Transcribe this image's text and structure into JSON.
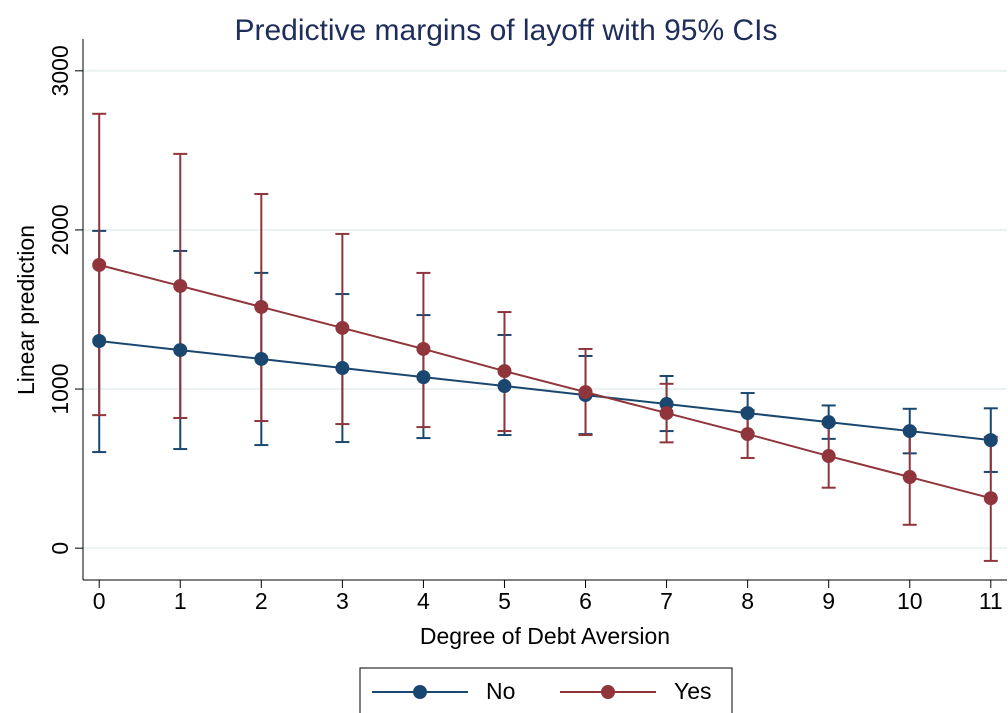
{
  "chart_data": {
    "type": "line",
    "title": "Predictive margins of layoff with 95% CIs",
    "x_label": "Degree of Debt Aversion",
    "y_label": "Linear prediction",
    "x": [
      0,
      1,
      2,
      3,
      4,
      5,
      6,
      7,
      8,
      9,
      10,
      11
    ],
    "series": [
      {
        "name": "No",
        "color": "#1a476f",
        "values": [
          1302,
          1245,
          1189,
          1132,
          1075,
          1019,
          962,
          906,
          849,
          792,
          736,
          679
        ],
        "lower": [
          604,
          623,
          648,
          667,
          692,
          711,
          717,
          736,
          723,
          687,
          596,
          479
        ],
        "upper": [
          1994,
          1868,
          1730,
          1597,
          1465,
          1340,
          1208,
          1082,
          975,
          897,
          876,
          879
        ]
      },
      {
        "name": "Yes",
        "color": "#90353b",
        "values": [
          1780,
          1648,
          1516,
          1384,
          1252,
          1113,
          981,
          849,
          717,
          579,
          447,
          314
        ],
        "lower": [
          836,
          818,
          799,
          780,
          761,
          736,
          711,
          665,
          567,
          380,
          147,
          -80
        ],
        "upper": [
          2730,
          2478,
          2226,
          1975,
          1730,
          1484,
          1252,
          1033,
          867,
          780,
          747,
          700
        ]
      }
    ],
    "xlim": [
      -0.2,
      11.2
    ],
    "ylim": [
      -200,
      3200
    ],
    "xticks": [
      0,
      1,
      2,
      3,
      4,
      5,
      6,
      7,
      8,
      9,
      10,
      11
    ],
    "yticks": [
      0,
      1000,
      2000,
      3000
    ],
    "grid": true
  }
}
